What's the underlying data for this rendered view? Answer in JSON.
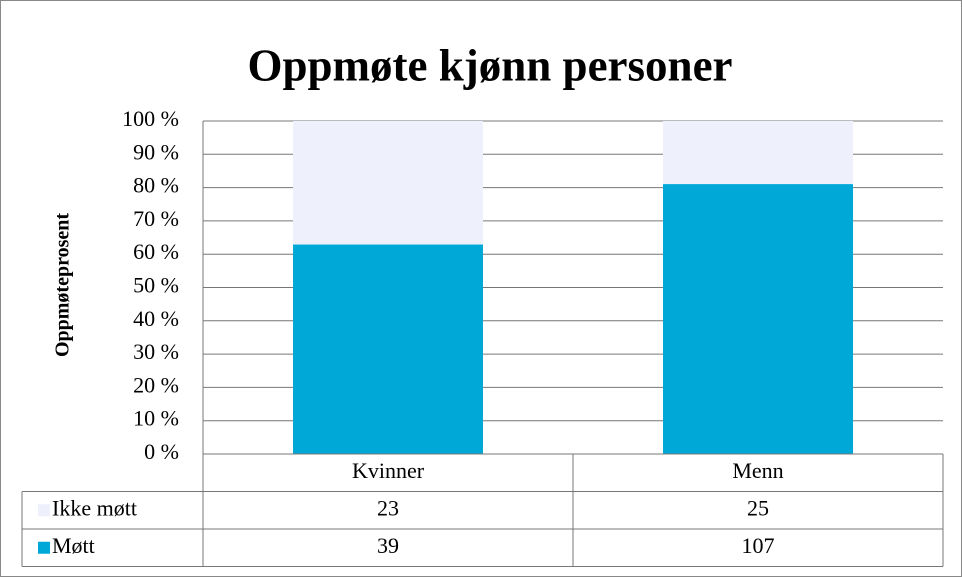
{
  "chart_data": {
    "type": "bar",
    "stacking": "percent",
    "title": "Oppmøte kjønn personer",
    "y_label": "Oppmøteprosent",
    "categories": [
      "Kvinner",
      "Menn"
    ],
    "series": [
      {
        "name": "Ikke møtt",
        "color": "#eef0fb",
        "values": [
          23,
          25
        ]
      },
      {
        "name": "Møtt",
        "color": "#00a8d8",
        "values": [
          39,
          107
        ]
      }
    ],
    "ylim": [
      0,
      100
    ],
    "yticks": [
      {
        "value": 0,
        "label": "0 %"
      },
      {
        "value": 10,
        "label": "10 %"
      },
      {
        "value": 20,
        "label": "20 %"
      },
      {
        "value": 30,
        "label": "30 %"
      },
      {
        "value": 40,
        "label": "40 %"
      },
      {
        "value": 50,
        "label": "50 %"
      },
      {
        "value": 60,
        "label": "60 %"
      },
      {
        "value": 70,
        "label": "70 %"
      },
      {
        "value": 80,
        "label": "80 %"
      },
      {
        "value": 90,
        "label": "90 %"
      },
      {
        "value": 100,
        "label": "100 %"
      }
    ],
    "grid": true,
    "data_table": true
  }
}
